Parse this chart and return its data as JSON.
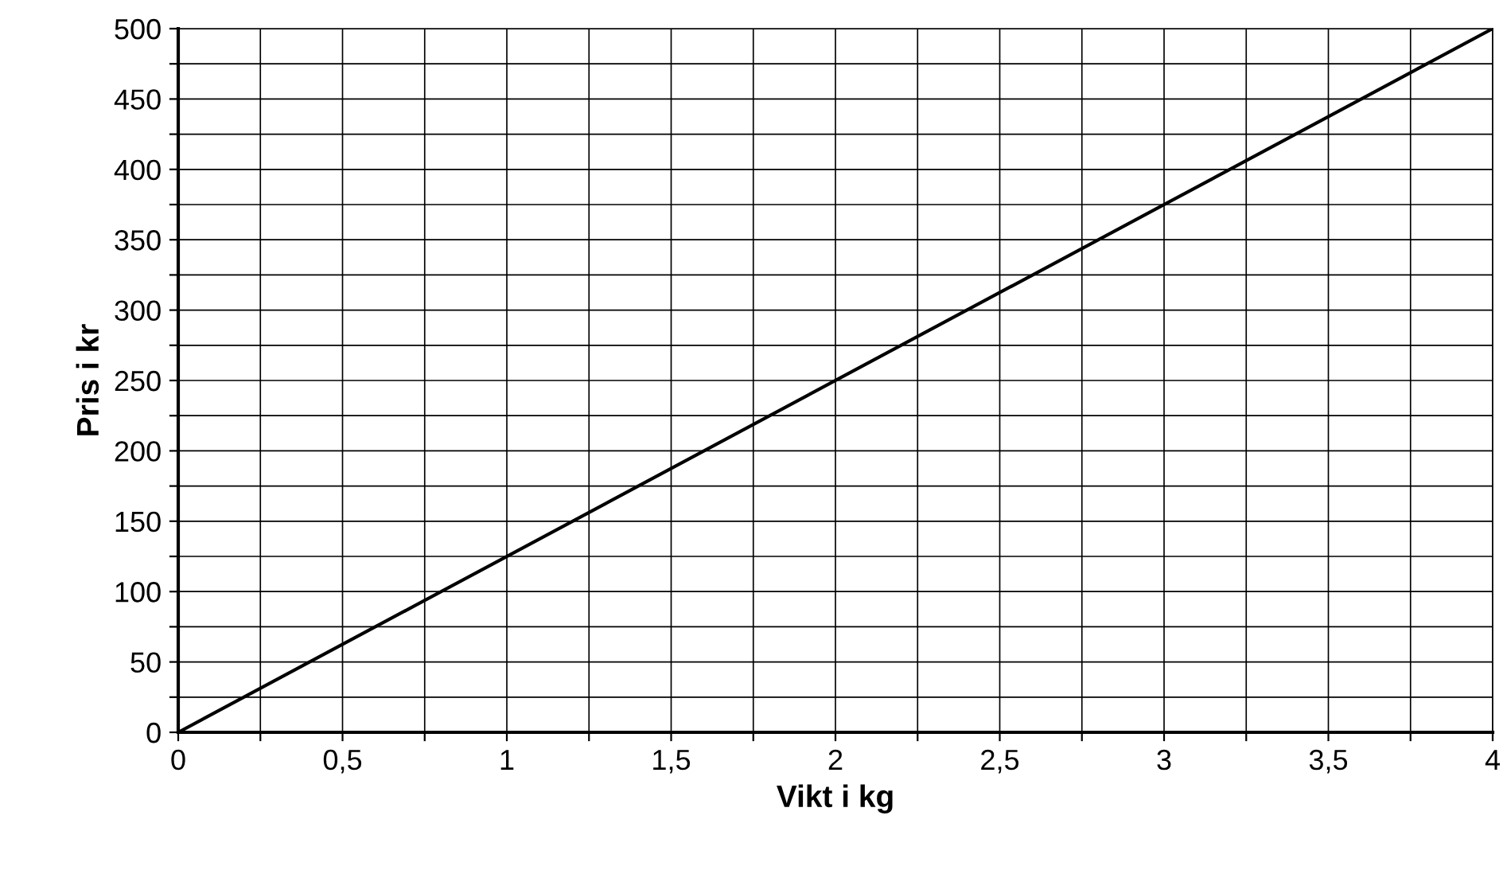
{
  "chart_data": {
    "type": "line",
    "xlabel": "Vikt i kg",
    "ylabel": "Pris i kr",
    "x": [
      0,
      4
    ],
    "series": [
      {
        "color": "#000000",
        "values": [
          0,
          500
        ]
      }
    ],
    "xlim": [
      0,
      4
    ],
    "ylim": [
      0,
      500
    ],
    "xticks": [
      0,
      {
        "value": 0.25,
        "label": null
      },
      {
        "value": 0.5,
        "label": "0,5"
      },
      {
        "value": 0.75,
        "label": null
      },
      1,
      {
        "value": 1.25,
        "label": null
      },
      {
        "value": 1.5,
        "label": "1,5"
      },
      {
        "value": 1.75,
        "label": null
      },
      2,
      {
        "value": 2.25,
        "label": null
      },
      {
        "value": 2.5,
        "label": "2,5"
      },
      {
        "value": 2.75,
        "label": null
      },
      3,
      {
        "value": 3.25,
        "label": null
      },
      {
        "value": 3.5,
        "label": "3,5"
      },
      {
        "value": 3.75,
        "label": null
      },
      4
    ],
    "yticks": [
      0,
      {
        "value": 25,
        "label": null
      },
      50,
      {
        "value": 75,
        "label": null
      },
      100,
      {
        "value": 125,
        "label": null
      },
      150,
      {
        "value": 175,
        "label": null
      },
      200,
      {
        "value": 225,
        "label": null
      },
      250,
      {
        "value": 275,
        "label": null
      },
      300,
      {
        "value": 325,
        "label": null
      },
      350,
      {
        "value": 375,
        "label": null
      },
      400,
      {
        "value": 425,
        "label": null
      },
      450,
      {
        "value": 475,
        "label": null
      },
      500
    ],
    "grid": true,
    "legend": false,
    "marker": "none",
    "line_style": "solid"
  }
}
